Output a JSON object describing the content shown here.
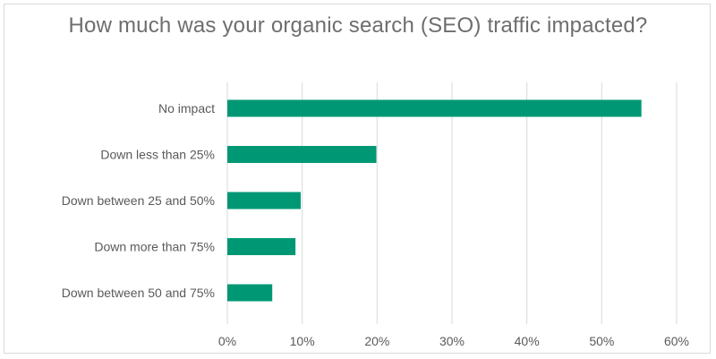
{
  "chart_data": {
    "type": "bar",
    "orientation": "horizontal",
    "title": "How much was your organic search (SEO) traffic impacted?",
    "categories": [
      "No impact",
      "Down less than 25%",
      "Down between 25 and 50%",
      "Down more than 75%",
      "Down between 50 and 75%"
    ],
    "values": [
      55.3,
      19.9,
      9.8,
      9.1,
      6.0
    ],
    "value_unit": "%",
    "xlim": [
      0,
      60
    ],
    "xticks": [
      "0%",
      "10%",
      "20%",
      "30%",
      "40%",
      "50%",
      "60%"
    ],
    "grid": "vertical",
    "legend": "none",
    "bar_color": "#009874",
    "grid_color": "#d9d9d9",
    "text_color": "#5a5a5a"
  }
}
